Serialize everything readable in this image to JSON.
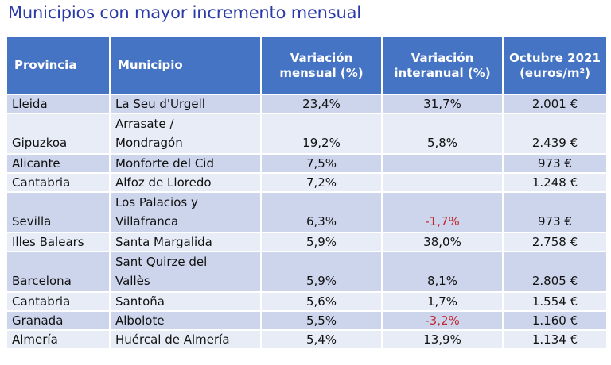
{
  "title": "Municipios con mayor incremento mensual",
  "colors": {
    "title": "#2a3aa8",
    "header_bg": "#4674c4",
    "row_dark": "#cdd5ec",
    "row_light": "#e8ecf7",
    "negative": "#c0282f"
  },
  "table": {
    "headers": {
      "provincia": "Provincia",
      "municipio": "Municipio",
      "var_mensual": "Variación mensual (%)",
      "var_interanual": "Variación interanual (%)",
      "precio": "Octubre 2021 (euros/m²)"
    },
    "rows": [
      {
        "provincia": "Lleida",
        "municipio": "La Seu d'Urgell",
        "var_mensual": "23,4%",
        "var_interanual": "31,7%",
        "precio": "2.001 €",
        "negative": false
      },
      {
        "provincia": "Gipuzkoa",
        "municipio": "Arrasate /\nMondragón",
        "var_mensual": "19,2%",
        "var_interanual": "5,8%",
        "precio": "2.439 €",
        "negative": false
      },
      {
        "provincia": "Alicante",
        "municipio": "Monforte del Cid",
        "var_mensual": "7,5%",
        "var_interanual": "",
        "precio": "973 €",
        "negative": false
      },
      {
        "provincia": "Cantabria",
        "municipio": "Alfoz de Lloredo",
        "var_mensual": "7,2%",
        "var_interanual": "",
        "precio": "1.248 €",
        "negative": false
      },
      {
        "provincia": "Sevilla",
        "municipio": "Los Palacios y\nVillafranca",
        "var_mensual": "6,3%",
        "var_interanual": "-1,7%",
        "precio": "973 €",
        "negative": true
      },
      {
        "provincia": "Illes Balears",
        "municipio": "Santa Margalida",
        "var_mensual": "5,9%",
        "var_interanual": "38,0%",
        "precio": "2.758 €",
        "negative": false
      },
      {
        "provincia": "Barcelona",
        "municipio": "Sant Quirze del\nVallès",
        "var_mensual": "5,9%",
        "var_interanual": "8,1%",
        "precio": "2.805 €",
        "negative": false
      },
      {
        "provincia": "Cantabria",
        "municipio": "Santoña",
        "var_mensual": "5,6%",
        "var_interanual": "1,7%",
        "precio": "1.554 €",
        "negative": false
      },
      {
        "provincia": "Granada",
        "municipio": "Albolote",
        "var_mensual": "5,5%",
        "var_interanual": "-3,2%",
        "precio": "1.160 €",
        "negative": true
      },
      {
        "provincia": "Almería",
        "municipio": "Huércal de Almería",
        "var_mensual": "5,4%",
        "var_interanual": "13,9%",
        "precio": "1.134 €",
        "negative": false
      }
    ]
  }
}
